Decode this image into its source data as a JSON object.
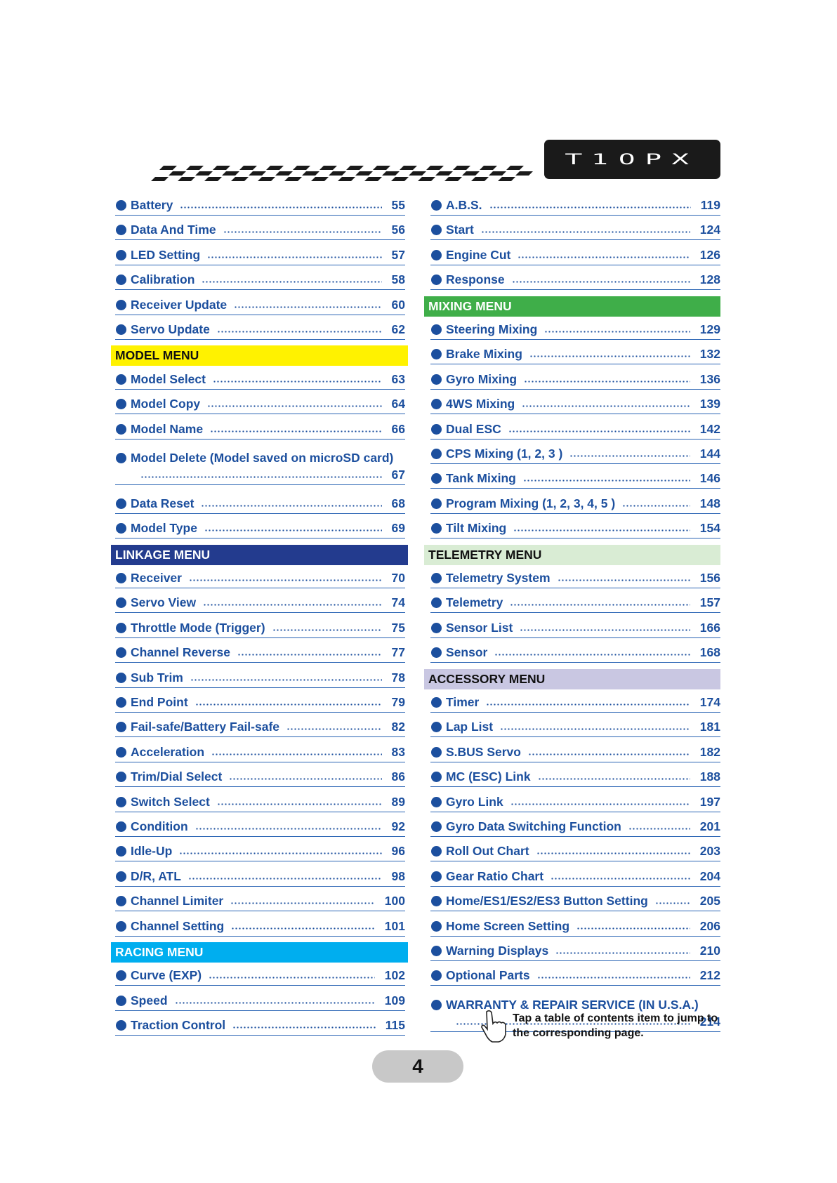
{
  "logo": "T10PX",
  "columns": [
    {
      "entries": [
        {
          "title": "Battery",
          "page": 55
        },
        {
          "title": "Data And Time",
          "page": 56
        },
        {
          "title": "LED Setting",
          "page": 57
        },
        {
          "title": "Calibration",
          "page": 58
        },
        {
          "title": "Receiver Update",
          "page": 60
        },
        {
          "title": "Servo Update",
          "page": 62
        },
        {
          "header": "MODEL MENU",
          "color": "#fff200"
        },
        {
          "title": "Model Select",
          "page": 63
        },
        {
          "title": "Model Copy",
          "page": 64
        },
        {
          "title": "Model Name",
          "page": 66
        },
        {
          "title": "Model Delete (Model saved on microSD card)",
          "page": 67
        },
        {
          "title": "Data Reset",
          "page": 68
        },
        {
          "title": "Model Type",
          "page": 69
        },
        {
          "header": "LINKAGE MENU",
          "color": "#233b8e"
        },
        {
          "title": "Receiver",
          "page": 70
        },
        {
          "title": "Servo View",
          "page": 74
        },
        {
          "title": "Throttle Mode (Trigger)",
          "page": 75
        },
        {
          "title": "Channel Reverse",
          "page": 77
        },
        {
          "title": "Sub Trim",
          "page": 78
        },
        {
          "title": "End Point",
          "page": 79
        },
        {
          "title": "Fail-safe/Battery Fail-safe",
          "page": 82
        },
        {
          "title": "Acceleration",
          "page": 83
        },
        {
          "title": "Trim/Dial Select",
          "page": 86
        },
        {
          "title": "Switch Select",
          "page": 89
        },
        {
          "title": "Condition",
          "page": 92
        },
        {
          "title": "Idle-Up",
          "page": 96
        },
        {
          "title": "D/R, ATL",
          "page": 98
        },
        {
          "title": "Channel Limiter",
          "page": 100
        },
        {
          "title": "Channel Setting",
          "page": 101
        },
        {
          "header": "RACING MENU",
          "color": "#00aeef"
        },
        {
          "title": "Curve (EXP)",
          "page": 102
        },
        {
          "title": "Speed",
          "page": 109
        },
        {
          "title": "Traction Control",
          "page": 115
        }
      ]
    },
    {
      "entries": [
        {
          "title": "A.B.S.",
          "page": 119
        },
        {
          "title": "Start",
          "page": 124
        },
        {
          "title": "Engine Cut",
          "page": 126
        },
        {
          "title": "Response",
          "page": 128
        },
        {
          "header": "MIXING MENU",
          "color": "#3fae49"
        },
        {
          "title": "Steering Mixing",
          "page": 129
        },
        {
          "title": "Brake Mixing",
          "page": 132
        },
        {
          "title": "Gyro Mixing",
          "page": 136
        },
        {
          "title": "4WS Mixing",
          "page": 139
        },
        {
          "title": "Dual ESC",
          "page": 142
        },
        {
          "title": "CPS Mixing (1, 2, 3 )",
          "page": 144
        },
        {
          "title": "Tank Mixing",
          "page": 146
        },
        {
          "title": "Program Mixing (1, 2, 3, 4, 5 )",
          "page": 148
        },
        {
          "title": "Tilt Mixing",
          "page": 154
        },
        {
          "header": "TELEMETRY MENU",
          "color": "#d9ecd4"
        },
        {
          "title": "Telemetry System",
          "page": 156
        },
        {
          "title": "Telemetry",
          "page": 157
        },
        {
          "title": "Sensor List",
          "page": 166
        },
        {
          "title": "Sensor",
          "page": 168
        },
        {
          "header": "ACCESSORY MENU",
          "color": "#c9c7e2"
        },
        {
          "title": "Timer",
          "page": 174
        },
        {
          "title": "Lap List",
          "page": 181
        },
        {
          "title": "S.BUS Servo",
          "page": 182
        },
        {
          "title": "MC (ESC) Link",
          "page": 188
        },
        {
          "title": "Gyro Link",
          "page": 197
        },
        {
          "title": "Gyro Data Switching Function",
          "page": 201
        },
        {
          "title": "Roll Out Chart",
          "page": 203
        },
        {
          "title": "Gear Ratio Chart",
          "page": 204
        },
        {
          "title": "Home/ES1/ES2/ES3 Button Setting",
          "page": 205
        },
        {
          "title": "Home Screen Setting",
          "page": 206
        },
        {
          "title": "Warning Displays",
          "page": 210
        },
        {
          "title": "Optional Parts",
          "page": 212
        },
        {
          "title": "WARRANTY & REPAIR SERVICE (IN U.S.A.)",
          "page": 214
        }
      ]
    }
  ],
  "hint": "Tap a table of contents item to jump to the corresponding page.",
  "page_number": 4
}
